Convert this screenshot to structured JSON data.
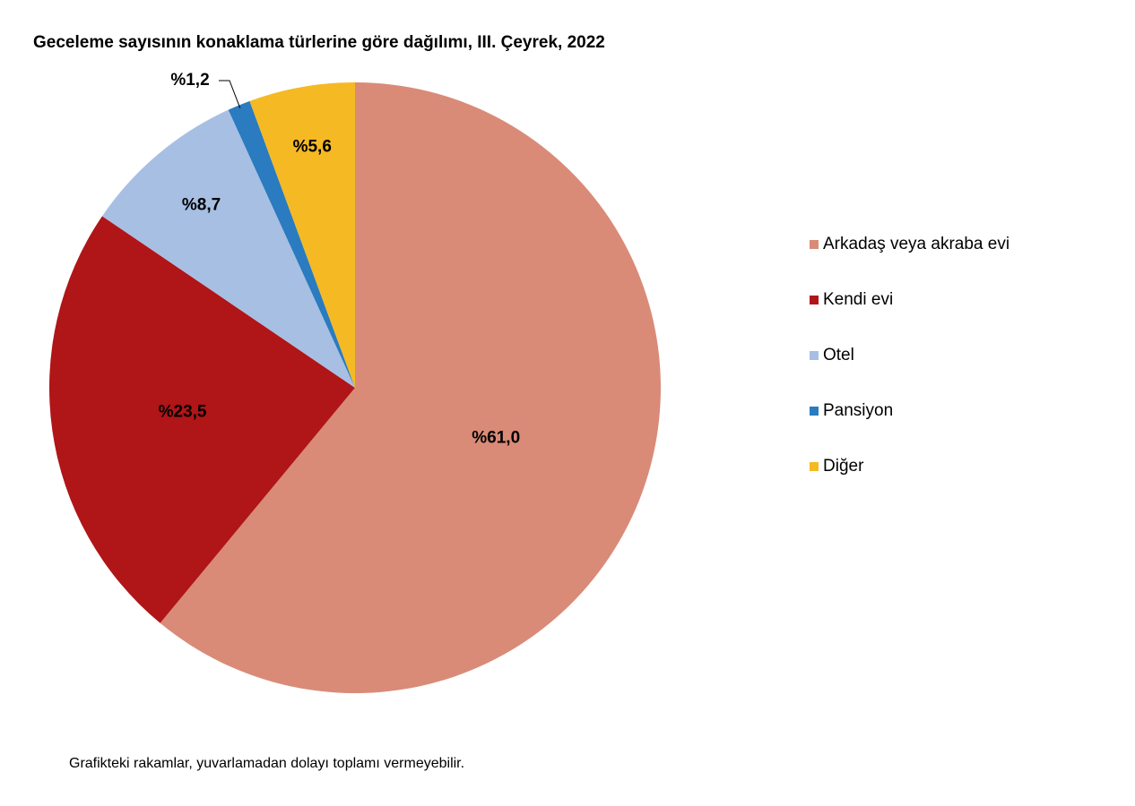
{
  "chart_data": {
    "type": "pie",
    "title": "Geceleme sayısının konaklama türlerine göre dağılımı, III. Çeyrek, 2022",
    "categories": [
      "Arkadaş veya akraba evi",
      "Kendi evi",
      "Otel",
      "Pansiyon",
      "Diğer"
    ],
    "values": [
      61.0,
      23.5,
      8.7,
      1.2,
      5.6
    ],
    "value_labels": [
      "%61,0",
      "%23,5",
      "%8,7",
      "%1,2",
      "%5,6"
    ],
    "colors": [
      "#d98b78",
      "#b01518",
      "#a7bfe3",
      "#2a7bbf",
      "#f5b923"
    ],
    "legend": "right",
    "note": "Grafikteki rakamlar, yuvarlamadan dolayı toplamı vermeyebilir."
  }
}
